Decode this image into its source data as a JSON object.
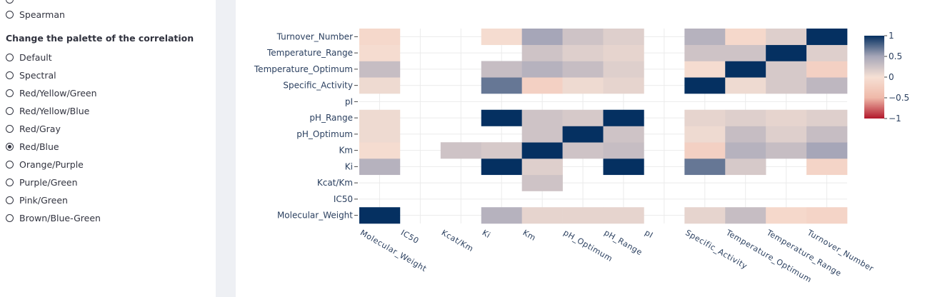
{
  "sidebar": {
    "first_option": "Spearman",
    "heading": "Change the palette of the correlation",
    "palettes": [
      "Default",
      "Spectral",
      "Red/Yellow/Green",
      "Red/Yellow/Blue",
      "Red/Gray",
      "Red/Blue",
      "Orange/Purple",
      "Purple/Green",
      "Pink/Green",
      "Brown/Blue-Green"
    ],
    "selected": "Red/Blue"
  },
  "chart_data": {
    "type": "heatmap",
    "x": [
      "Molecular_Weight",
      "IC50",
      "Kcat/Km",
      "Ki",
      "Km",
      "pH_Optimum",
      "pH_Range",
      "pI",
      "Specific_Activity",
      "Temperature_Optimum",
      "Temperature_Range",
      "Turnover_Number"
    ],
    "y": [
      "Molecular_Weight",
      "IC50",
      "Kcat/Km",
      "Ki",
      "Km",
      "pH_Optimum",
      "pH_Range",
      "pI",
      "Specific_Activity",
      "Temperature_Optimum",
      "Temperature_Range",
      "Turnover_Number"
    ],
    "z": [
      [
        1,
        null,
        null,
        0.4,
        0.1,
        0.1,
        0.1,
        null,
        0.1,
        0.3,
        -0.1,
        -0.15
      ],
      [
        null,
        null,
        null,
        null,
        null,
        null,
        null,
        null,
        null,
        null,
        null,
        null
      ],
      [
        null,
        null,
        null,
        null,
        0.25,
        null,
        null,
        null,
        null,
        null,
        null,
        null
      ],
      [
        0.4,
        null,
        null,
        1,
        0.15,
        null,
        1,
        null,
        0.7,
        0.2,
        null,
        -0.15
      ],
      [
        -0.05,
        null,
        0.25,
        0.2,
        1,
        0.25,
        0.3,
        null,
        -0.2,
        0.4,
        0.3,
        0.5
      ],
      [
        0.05,
        null,
        null,
        null,
        0.25,
        1,
        0.25,
        null,
        0.05,
        0.3,
        0.15,
        0.3
      ],
      [
        0.05,
        null,
        null,
        1,
        0.25,
        0.2,
        1,
        null,
        0.1,
        0.15,
        0.1,
        0.15
      ],
      [
        null,
        null,
        null,
        null,
        null,
        null,
        null,
        null,
        null,
        null,
        null,
        null
      ],
      [
        0.05,
        null,
        null,
        0.7,
        -0.2,
        0.05,
        0.1,
        null,
        1,
        0.05,
        0.2,
        0.35
      ],
      [
        0.3,
        null,
        null,
        0.3,
        0.4,
        0.3,
        0.15,
        null,
        -0.05,
        1,
        0.2,
        -0.2
      ],
      [
        -0.05,
        null,
        null,
        null,
        0.25,
        0.15,
        0.1,
        null,
        0.25,
        0.25,
        1,
        0.15
      ],
      [
        -0.1,
        null,
        null,
        -0.05,
        0.5,
        0.25,
        0.15,
        null,
        0.4,
        -0.1,
        0.15,
        1
      ]
    ],
    "zlim": [
      -1,
      1
    ],
    "colorscale": [
      "#b2182b",
      "#efb9a9",
      "#f6e0d4",
      "#a6a6b8",
      "#053061"
    ],
    "zticks": [
      1,
      0.5,
      0,
      {
        "value": -0.5,
        "label": "−0.5"
      },
      {
        "value": -1,
        "label": "−1"
      }
    ]
  }
}
